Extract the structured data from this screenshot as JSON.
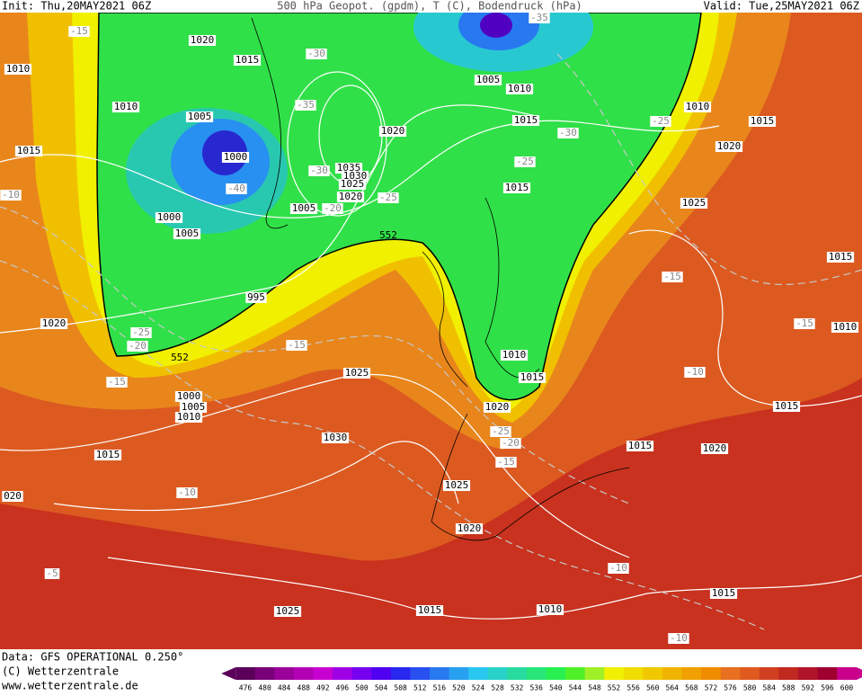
{
  "header": {
    "init": "Init: Thu,20MAY2021 06Z",
    "title": "500 hPa Geopot. (gpdm), T (C), Bodendruck (hPa)",
    "valid": "Valid: Tue,25MAY2021 06Z"
  },
  "footer": {
    "source": "Data: GFS OPERATIONAL 0.250°",
    "copyright": "(C) Wetterzentrale",
    "url": "www.wetterzentrale.de"
  },
  "colorbar": {
    "labels": [
      476,
      480,
      484,
      488,
      492,
      496,
      500,
      504,
      508,
      512,
      516,
      520,
      524,
      528,
      532,
      536,
      540,
      544,
      548,
      552,
      556,
      560,
      564,
      568,
      572,
      576,
      580,
      584,
      588,
      592,
      596,
      600
    ],
    "colors": [
      "#5a005a",
      "#7a007a",
      "#9a009a",
      "#b400b4",
      "#c800d2",
      "#a000e6",
      "#7800f0",
      "#5000f0",
      "#2828f0",
      "#2850f0",
      "#2878f0",
      "#28a0f0",
      "#28c8f0",
      "#28d2c8",
      "#28dca0",
      "#28e678",
      "#28f050",
      "#50f028",
      "#a0f028",
      "#f0f000",
      "#f0dc00",
      "#f0c800",
      "#f0b400",
      "#f0a000",
      "#f08c00",
      "#e87020",
      "#e05a20",
      "#d04020",
      "#c02820",
      "#b01428",
      "#a00030",
      "#c8008c"
    ]
  },
  "map": {
    "isobar_labels": [
      "1020",
      "1015",
      "1010",
      "1010",
      "1005",
      "1015",
      "1000",
      "1000",
      "1005",
      "1005",
      "1035",
      "1030",
      "1025",
      "1020",
      "1020",
      "1005",
      "1010",
      "1015",
      "1015",
      "1010",
      "1015",
      "1020",
      "1025",
      "1015",
      "995",
      "1020",
      "1010",
      "1010",
      "1015",
      "1025",
      "1000",
      "1005",
      "1010",
      "1020",
      "1015",
      "1030",
      "1015",
      "1020",
      "1015",
      "1025",
      "020",
      "1020",
      "1015",
      "1025",
      "1015",
      "1010"
    ],
    "temperature_labels": [
      "-15",
      "-35",
      "-30",
      "-35",
      "-30",
      "-25",
      "-40",
      "-30",
      "-25",
      "-25",
      "-20",
      "-10",
      "-15",
      "-25",
      "-20",
      "-15",
      "-15",
      "-15",
      "-10",
      "-25",
      "-20",
      "-15",
      "-10",
      "-5",
      "-10",
      "-10"
    ],
    "height_labels": [
      "552",
      "552"
    ]
  }
}
